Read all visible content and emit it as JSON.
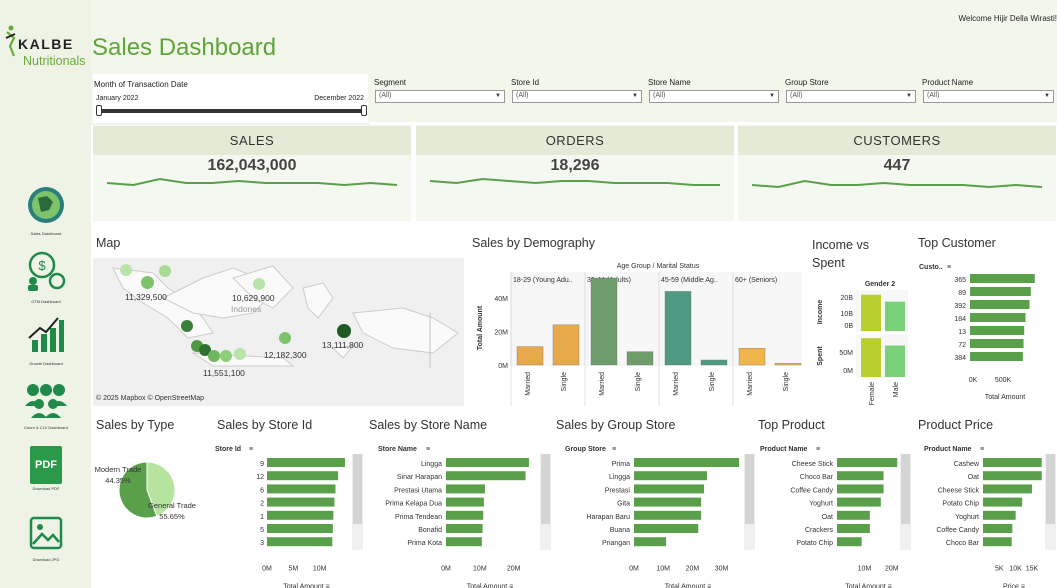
{
  "brand": {
    "name_top": "KALBE",
    "name_bottom": "Nutritionals"
  },
  "welcome": "Welcome Hijir Della Wirasti!",
  "title": "Sales Dashboard",
  "nav": [
    {
      "label": "Sales Dashboard",
      "icon": "globe-icon"
    },
    {
      "label": "GTM Dashboard",
      "icon": "money-people-icon"
    },
    {
      "label": "Growth Dashboard",
      "icon": "growth-chart-icon"
    },
    {
      "label": "Churn & CLV Dashboard",
      "icon": "group-icon"
    },
    {
      "label": "Download PDF",
      "icon": "pdf-icon",
      "text": "PDF"
    },
    {
      "label": "Download JPG",
      "icon": "image-icon"
    }
  ],
  "filters": {
    "month": {
      "label": "Month of Transaction Date",
      "start": "January 2022",
      "end": "December 2022"
    },
    "dropdowns": [
      {
        "label": "Segment",
        "value": "(All)"
      },
      {
        "label": "Store Id",
        "value": "(All)"
      },
      {
        "label": "Store Name",
        "value": "(All)"
      },
      {
        "label": "Group Store",
        "value": "(All)"
      },
      {
        "label": "Product Name",
        "value": "(All)"
      }
    ]
  },
  "kpis": [
    {
      "label": "SALES",
      "value": "162,043,000",
      "trend": [
        5,
        4,
        7,
        5,
        5,
        6,
        5,
        5,
        5,
        4,
        5,
        4
      ]
    },
    {
      "label": "ORDERS",
      "value": "18,296",
      "trend": [
        6,
        5,
        7,
        6,
        5,
        6,
        6,
        5,
        5,
        5,
        4,
        4
      ]
    },
    {
      "label": "CUSTOMERS",
      "value": "447",
      "trend": [
        4,
        3,
        6,
        4,
        4,
        5,
        4,
        4,
        4,
        3,
        4,
        3
      ]
    }
  ],
  "sections": {
    "map": "Map",
    "demography": "Sales by Demography",
    "income": "Income vs Spent",
    "top_customer": "Top Customer",
    "sales_type": "Sales by Type",
    "store_id": "Sales by Store Id",
    "store_name": "Sales by Store Name",
    "group_store": "Sales by Group Store",
    "top_product": "Top Product",
    "product_price": "Product Price"
  },
  "map": {
    "labels": [
      "11,329,500",
      "10,629,900",
      "12,182,300",
      "13,111,800",
      "11,551,100"
    ],
    "country": "Indones",
    "credit": "© 2025 Mapbox  © OpenStreetMap"
  },
  "chart_data": [
    {
      "type": "bar",
      "title": "Sales by Demography",
      "header": "Age Group / Marital Status",
      "groups": [
        "18-29 (Young Adu..",
        "30-44 (Adults)",
        "45-59 (Middle Ag..",
        "60+ (Seniors)"
      ],
      "categories": [
        "Married",
        "Single"
      ],
      "values": [
        [
          11,
          24
        ],
        [
          52,
          8
        ],
        [
          44,
          3
        ],
        [
          10,
          1
        ]
      ],
      "colors": [
        "#e8a94a",
        "#6e9c6a",
        "#4f9a82",
        "#f0b64c"
      ],
      "ylabel": "Total Amount",
      "yticks": [
        "0M",
        "20M",
        "40M"
      ],
      "ylim": [
        0,
        55
      ]
    },
    {
      "type": "bar",
      "title": "Income vs Spent",
      "header": "Gender 2",
      "categories": [
        "Female",
        "Male"
      ],
      "income": [
        21,
        17
      ],
      "spent": [
        64,
        52
      ],
      "income_ticks": [
        "20B",
        "10B",
        "0B"
      ],
      "spent_ticks": [
        "50M",
        "0M"
      ],
      "income_label": "Income",
      "spent_label": "Spent"
    },
    {
      "type": "bar",
      "title": "Top Customer",
      "col": "Custo..",
      "categories": [
        "365",
        "89",
        "392",
        "184",
        "13",
        "72",
        "384"
      ],
      "values": [
        980,
        920,
        900,
        840,
        820,
        810,
        800
      ],
      "xticks": [
        "0K",
        "500K"
      ],
      "xlim": [
        0,
        1150
      ],
      "xlabel": "Total Amount"
    },
    {
      "type": "pie",
      "title": "Sales by Type",
      "categories": [
        "Modern Trade",
        "General Trade"
      ],
      "values": [
        44.35,
        55.65
      ],
      "labels": [
        "Modern Trade\n44.35%",
        "General Trade\n55.65%"
      ]
    },
    {
      "type": "bar",
      "title": "Sales by Store Id",
      "col": "Store Id",
      "categories": [
        "9",
        "12",
        "6",
        "2",
        "1",
        "5",
        "3"
      ],
      "values": [
        14.8,
        13.5,
        13.0,
        12.8,
        12.6,
        12.5,
        12.4
      ],
      "xticks": [
        "0M",
        "5M",
        "10M"
      ],
      "xlim": [
        0,
        15
      ],
      "xlabel": "Total Amount"
    },
    {
      "type": "bar",
      "title": "Sales by Store Name",
      "col": "Store Name",
      "categories": [
        "Lingga",
        "Sinar Harapan",
        "Prestasi Utama",
        "Prima Kelapa Dua",
        "Prima Tendean",
        "Bonafid",
        "Prima Kota"
      ],
      "values": [
        24.5,
        23.5,
        11.5,
        11.2,
        11.0,
        10.8,
        10.6
      ],
      "xticks": [
        "0M",
        "10M",
        "20M"
      ],
      "xlim": [
        0,
        26
      ],
      "xlabel": "Total Amount"
    },
    {
      "type": "bar",
      "title": "Sales by Group Store",
      "col": "Group Store",
      "categories": [
        "Prima",
        "Lingga",
        "Prestasi",
        "Gita",
        "Harapan Baru",
        "Buana",
        "Priangan"
      ],
      "values": [
        36,
        25,
        24,
        23,
        23,
        22,
        11
      ],
      "xticks": [
        "0M",
        "10M",
        "20M",
        "30M"
      ],
      "xlim": [
        0,
        37
      ],
      "xlabel": "Total Amount"
    },
    {
      "type": "bar",
      "title": "Top Product",
      "col": "Product Name",
      "categories": [
        "Cheese Stick",
        "Choco Bar",
        "Coffee Candy",
        "Yoghurt",
        "Oat",
        "Crackers",
        "Potato Chip"
      ],
      "values": [
        22,
        17,
        17,
        16,
        12,
        12,
        9
      ],
      "xticks": [
        "10M",
        "20M"
      ],
      "xlim": [
        0,
        23
      ],
      "xlabel": "Total Amount"
    },
    {
      "type": "bar",
      "title": "Product Price",
      "col": "Product Name",
      "categories": [
        "Cashew",
        "Oat",
        "Cheese Stick",
        "Potato Chip",
        "Yoghurt",
        "Coffee Candy",
        "Choco Bar"
      ],
      "values": [
        18000,
        18000,
        15000,
        12000,
        10000,
        9000,
        8800
      ],
      "xticks": [
        "5K",
        "10K",
        "15K"
      ],
      "xlim": [
        0,
        19000
      ],
      "xlabel": "Price"
    }
  ],
  "colors": {
    "accent": "#5fa33a",
    "bar": "#5aa04a",
    "panel": "#f5f8f0",
    "kpi_header": "#e3ead6"
  }
}
